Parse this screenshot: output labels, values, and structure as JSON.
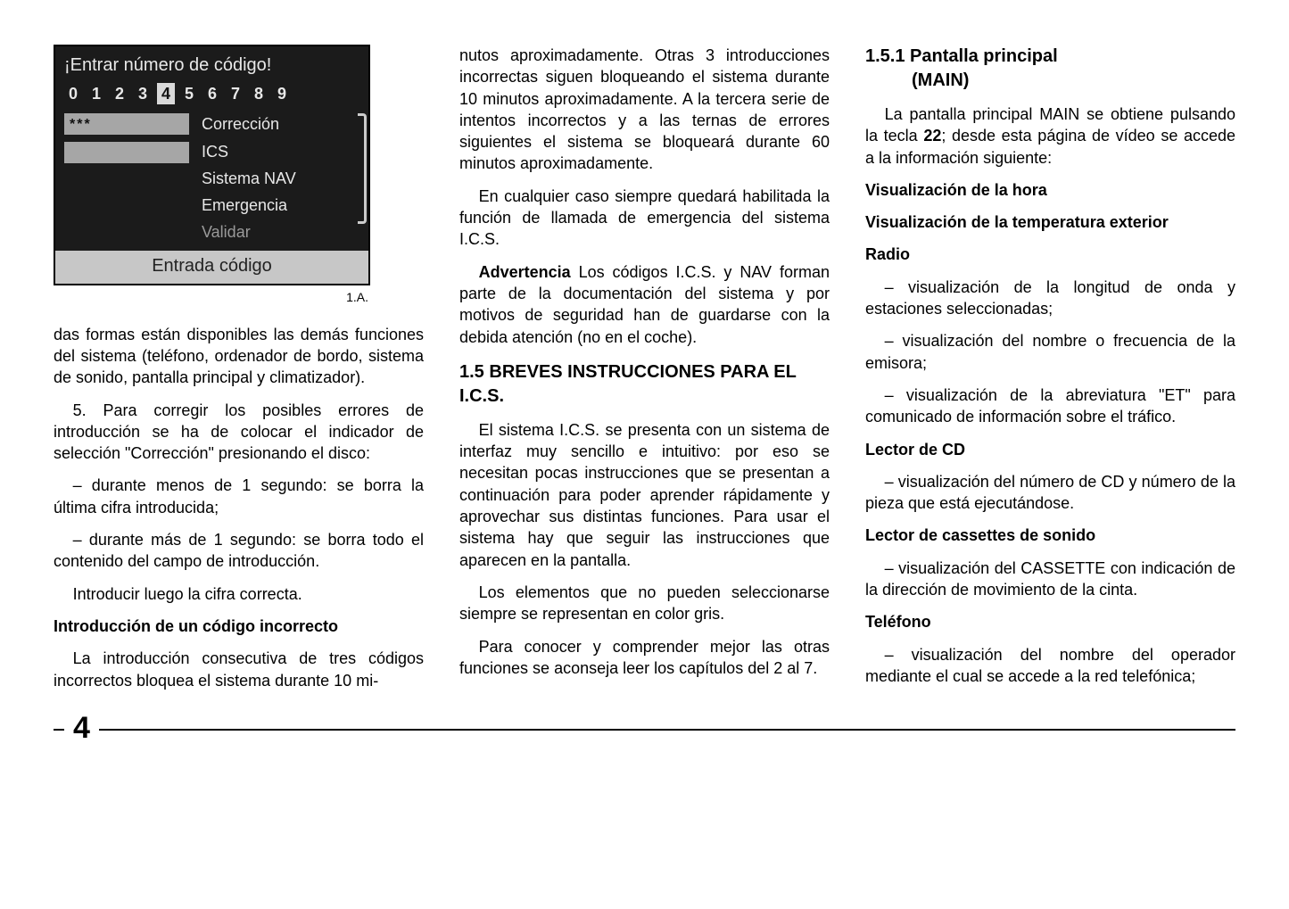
{
  "screen": {
    "title": "¡Entrar número de código!",
    "digits": [
      "0",
      "1",
      "2",
      "3",
      "4",
      "5",
      "6",
      "7",
      "8",
      "9"
    ],
    "highlight_index": 4,
    "field_value": "***",
    "labels": {
      "correccion": "Corrección",
      "ics": "ICS",
      "nav": "Sistema NAV",
      "emergencia": "Emergencia",
      "validar": "Validar"
    },
    "footer": "Entrada código",
    "caption": "1.A."
  },
  "col1": {
    "p1": "das formas están disponibles las demás funciones del sistema (teléfono, ordenador de bordo, sistema de sonido, pantalla principal y climatizador).",
    "p2": "5. Para corregir los posibles errores de introducción se ha de colocar el indicador de selección \"Corrección\" presionando el disco:",
    "p3": "– durante menos de 1 segundo: se borra la última cifra introducida;",
    "p4": "– durante más de 1 segundo: se borra todo el contenido del campo de introducción.",
    "p5": "Introducir luego la cifra correcta.",
    "h1": "Introducción de un código incorrecto",
    "p6": "La introducción consecutiva de tres códigos incorrectos bloquea el sistema durante 10 mi-"
  },
  "col2": {
    "p1": "nutos aproximadamente. Otras 3 introducciones incorrectas siguen bloqueando el sistema durante 10 minutos aproximadamente. A la tercera serie de intentos incorrectos y a las ternas de errores siguientes el sistema se bloqueará durante 60 minutos aproximadamente.",
    "p2": "En cualquier caso siempre quedará habilitada la función de llamada de emergencia del sistema I.C.S.",
    "adv_label": "Advertencia",
    "p3": " Los códigos I.C.S. y NAV forman parte de la documentación del sistema y por motivos de seguridad han de guardarse con la debida atención (no en el coche).",
    "h_num": "1.5",
    "h_title": "BREVES INSTRUCCIONES PARA EL I.C.S.",
    "p4": "El sistema I.C.S. se presenta con un sistema de interfaz muy sencillo e intuitivo: por eso se necesitan pocas instrucciones que se presentan a continuación para poder aprender rápidamente y aprovechar sus distintas funciones. Para usar el sistema hay que seguir las instrucciones que aparecen en la pantalla.",
    "p5": "Los elementos que no pueden seleccionarse siempre se representan en color gris.",
    "p6": "Para conocer y comprender mejor las otras funciones se aconseja leer los capítulos del 2 al 7."
  },
  "col3": {
    "h_num": "1.5.1",
    "h_title_a": "Pantalla principal",
    "h_title_b": "(MAIN)",
    "p1a": "La pantalla principal MAIN se obtiene pulsando la tecla ",
    "p1b": "22",
    "p1c": "; desde esta página de vídeo se accede a la información siguiente:",
    "h1": "Visualización de la hora",
    "h2": "Visualización de la temperatura exterior",
    "h3": "Radio",
    "p2": "– visualización de la longitud de onda y estaciones seleccionadas;",
    "p3": "– visualización del nombre o frecuencia de la emisora;",
    "p4": "– visualización de la abreviatura \"ET\" para comunicado de información sobre el tráfico.",
    "h4": "Lector de CD",
    "p5": "– visualización del número de CD y número de la pieza que está ejecutándose.",
    "h5": "Lector de cassettes de sonido",
    "p6": "– visualización del CASSETTE con indicación de la dirección de movimiento de la cinta.",
    "h6": "Teléfono",
    "p7": "– visualización del nombre del operador mediante el cual se accede a la red telefónica;"
  },
  "page_number": "4",
  "colors": {
    "screen_bg": "#1b1b1b",
    "screen_fg": "#e8e8e8",
    "field_bg": "#a6a6a6",
    "footer_bg": "#c7c7c7",
    "dim": "#9a9a9a"
  }
}
